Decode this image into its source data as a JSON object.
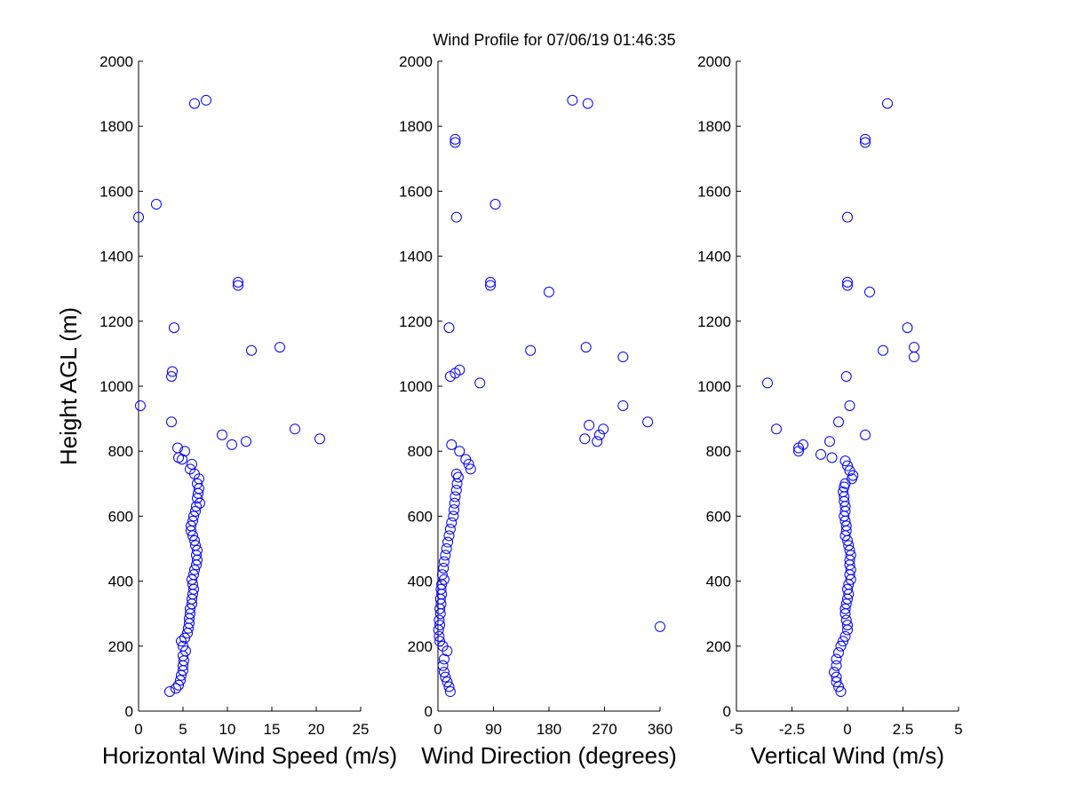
{
  "title": "Wind Profile for  07/06/19 01:46:35",
  "marker_color": "#0000ff",
  "chart_data": [
    {
      "type": "scatter",
      "xlabel": "Horizontal Wind Speed (m/s)",
      "ylabel": "Height AGL (m)",
      "xlim": [
        0,
        25
      ],
      "ylim": [
        0,
        2000
      ],
      "xticks": [
        "0",
        "5",
        "10",
        "15",
        "20",
        "25"
      ],
      "yticks": [
        "0",
        "200",
        "400",
        "600",
        "800",
        "1000",
        "1200",
        "1400",
        "1600",
        "1800",
        "2000"
      ],
      "grid": false,
      "points": [
        [
          3.5,
          60
        ],
        [
          4.2,
          70
        ],
        [
          4.5,
          80
        ],
        [
          4.7,
          95
        ],
        [
          4.8,
          110
        ],
        [
          5.0,
          125
        ],
        [
          5.0,
          140
        ],
        [
          5.1,
          155
        ],
        [
          5.0,
          170
        ],
        [
          5.3,
          185
        ],
        [
          5.0,
          200
        ],
        [
          4.8,
          215
        ],
        [
          5.2,
          225
        ],
        [
          5.5,
          240
        ],
        [
          5.6,
          255
        ],
        [
          5.7,
          270
        ],
        [
          5.7,
          285
        ],
        [
          5.8,
          300
        ],
        [
          5.8,
          315
        ],
        [
          6.0,
          330
        ],
        [
          6.0,
          345
        ],
        [
          6.1,
          360
        ],
        [
          6.2,
          375
        ],
        [
          6.1,
          390
        ],
        [
          6.0,
          405
        ],
        [
          6.2,
          420
        ],
        [
          6.3,
          435
        ],
        [
          6.5,
          450
        ],
        [
          6.6,
          465
        ],
        [
          6.5,
          480
        ],
        [
          6.6,
          495
        ],
        [
          6.4,
          510
        ],
        [
          6.3,
          525
        ],
        [
          6.1,
          540
        ],
        [
          5.9,
          555
        ],
        [
          5.9,
          570
        ],
        [
          6.1,
          585
        ],
        [
          6.2,
          600
        ],
        [
          6.4,
          615
        ],
        [
          6.5,
          630
        ],
        [
          6.9,
          640
        ],
        [
          6.6,
          655
        ],
        [
          6.7,
          670
        ],
        [
          6.8,
          685
        ],
        [
          6.6,
          700
        ],
        [
          6.8,
          715
        ],
        [
          6.3,
          730
        ],
        [
          5.8,
          745
        ],
        [
          6.0,
          760
        ],
        [
          4.9,
          775
        ],
        [
          4.5,
          780
        ],
        [
          5.2,
          800
        ],
        [
          4.4,
          810
        ],
        [
          10.5,
          820
        ],
        [
          12.1,
          830
        ],
        [
          20.4,
          838
        ],
        [
          9.4,
          850
        ],
        [
          17.6,
          868
        ],
        [
          3.7,
          890
        ],
        [
          0.2,
          940
        ],
        [
          3.7,
          1030
        ],
        [
          3.8,
          1045
        ],
        [
          12.7,
          1110
        ],
        [
          15.9,
          1120
        ],
        [
          4.0,
          1180
        ],
        [
          11.2,
          1310
        ],
        [
          11.2,
          1320
        ],
        [
          0.0,
          1520
        ],
        [
          2.0,
          1560
        ],
        [
          6.3,
          1870
        ],
        [
          7.6,
          1880
        ]
      ]
    },
    {
      "type": "scatter",
      "xlabel": "Wind Direction (degrees)",
      "ylabel": "",
      "xlim": [
        0,
        360
      ],
      "ylim": [
        0,
        2000
      ],
      "xticks": [
        "0",
        "90",
        "180",
        "270",
        "360"
      ],
      "yticks": [
        "0",
        "200",
        "400",
        "600",
        "800",
        "1000",
        "1200",
        "1400",
        "1600",
        "1800",
        "2000"
      ],
      "grid": false,
      "points": [
        [
          20,
          60
        ],
        [
          18,
          75
        ],
        [
          15,
          90
        ],
        [
          12,
          105
        ],
        [
          10,
          120
        ],
        [
          8,
          140
        ],
        [
          10,
          160
        ],
        [
          15,
          185
        ],
        [
          8,
          200
        ],
        [
          3,
          215
        ],
        [
          2,
          230
        ],
        [
          1,
          250
        ],
        [
          3,
          265
        ],
        [
          2,
          280
        ],
        [
          4,
          300
        ],
        [
          3,
          315
        ],
        [
          5,
          330
        ],
        [
          4,
          345
        ],
        [
          6,
          360
        ],
        [
          5,
          375
        ],
        [
          6,
          390
        ],
        [
          10,
          405
        ],
        [
          7,
          420
        ],
        [
          9,
          440
        ],
        [
          10,
          460
        ],
        [
          12,
          480
        ],
        [
          14,
          500
        ],
        [
          16,
          520
        ],
        [
          18,
          540
        ],
        [
          20,
          560
        ],
        [
          22,
          580
        ],
        [
          25,
          600
        ],
        [
          26,
          620
        ],
        [
          27,
          640
        ],
        [
          28,
          660
        ],
        [
          30,
          680
        ],
        [
          31,
          700
        ],
        [
          33,
          720
        ],
        [
          30,
          730
        ],
        [
          53,
          745
        ],
        [
          50,
          760
        ],
        [
          45,
          775
        ],
        [
          35,
          800
        ],
        [
          22,
          820
        ],
        [
          238,
          838
        ],
        [
          258,
          830
        ],
        [
          262,
          850
        ],
        [
          268,
          868
        ],
        [
          245,
          880
        ],
        [
          340,
          890
        ],
        [
          300,
          940
        ],
        [
          68,
          1010
        ],
        [
          20,
          1030
        ],
        [
          28,
          1040
        ],
        [
          35,
          1050
        ],
        [
          300,
          1090
        ],
        [
          150,
          1110
        ],
        [
          240,
          1120
        ],
        [
          18,
          1180
        ],
        [
          180,
          1290
        ],
        [
          85,
          1310
        ],
        [
          85,
          1320
        ],
        [
          30,
          1520
        ],
        [
          93,
          1560
        ],
        [
          28,
          1750
        ],
        [
          28,
          1760
        ],
        [
          243,
          1870
        ],
        [
          218,
          1880
        ],
        [
          360,
          260
        ]
      ]
    },
    {
      "type": "scatter",
      "xlabel": "Vertical Wind (m/s)",
      "ylabel": "",
      "xlim": [
        -5,
        5
      ],
      "ylim": [
        0,
        2000
      ],
      "xticks": [
        "-5",
        "-2.5",
        "0",
        "2.5",
        "5"
      ],
      "yticks": [
        "0",
        "200",
        "400",
        "600",
        "800",
        "1000",
        "1200",
        "1400",
        "1600",
        "1800",
        "2000"
      ],
      "grid": false,
      "points": [
        [
          -0.3,
          60
        ],
        [
          -0.4,
          75
        ],
        [
          -0.5,
          90
        ],
        [
          -0.5,
          105
        ],
        [
          -0.6,
          120
        ],
        [
          -0.5,
          140
        ],
        [
          -0.5,
          160
        ],
        [
          -0.4,
          180
        ],
        [
          -0.3,
          200
        ],
        [
          -0.2,
          215
        ],
        [
          -0.1,
          230
        ],
        [
          0.0,
          250
        ],
        [
          0.0,
          265
        ],
        [
          -0.05,
          280
        ],
        [
          -0.1,
          300
        ],
        [
          -0.1,
          315
        ],
        [
          -0.05,
          330
        ],
        [
          0.0,
          345
        ],
        [
          0.05,
          360
        ],
        [
          0.0,
          375
        ],
        [
          0.05,
          390
        ],
        [
          0.15,
          405
        ],
        [
          0.1,
          420
        ],
        [
          0.15,
          435
        ],
        [
          0.1,
          450
        ],
        [
          0.1,
          465
        ],
        [
          0.15,
          480
        ],
        [
          0.1,
          495
        ],
        [
          0.05,
          510
        ],
        [
          0.0,
          525
        ],
        [
          -0.1,
          540
        ],
        [
          -0.05,
          555
        ],
        [
          -0.05,
          570
        ],
        [
          -0.1,
          585
        ],
        [
          -0.15,
          600
        ],
        [
          -0.1,
          615
        ],
        [
          -0.1,
          630
        ],
        [
          -0.15,
          645
        ],
        [
          -0.15,
          660
        ],
        [
          -0.2,
          675
        ],
        [
          -0.15,
          690
        ],
        [
          -0.1,
          700
        ],
        [
          0.2,
          715
        ],
        [
          0.25,
          725
        ],
        [
          0.1,
          740
        ],
        [
          0.0,
          755
        ],
        [
          -0.1,
          770
        ],
        [
          -1.2,
          790
        ],
        [
          -0.7,
          780
        ],
        [
          -2.2,
          800
        ],
        [
          -2.2,
          810
        ],
        [
          -2.0,
          820
        ],
        [
          -0.8,
          830
        ],
        [
          0.8,
          850
        ],
        [
          -3.2,
          868
        ],
        [
          -0.4,
          890
        ],
        [
          0.1,
          940
        ],
        [
          -3.6,
          1010
        ],
        [
          -0.05,
          1030
        ],
        [
          1.6,
          1110
        ],
        [
          3.0,
          1120
        ],
        [
          3.0,
          1090
        ],
        [
          2.7,
          1180
        ],
        [
          1.0,
          1290
        ],
        [
          0.0,
          1310
        ],
        [
          0.0,
          1320
        ],
        [
          0.0,
          1520
        ],
        [
          0.8,
          1750
        ],
        [
          0.8,
          1760
        ],
        [
          1.8,
          1870
        ]
      ]
    }
  ]
}
